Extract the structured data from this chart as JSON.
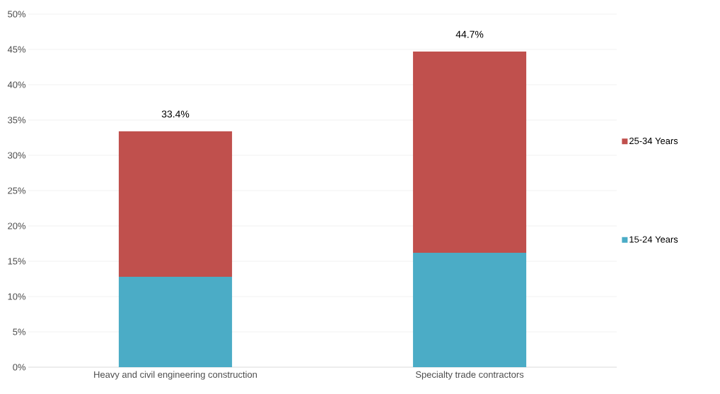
{
  "chart_data": {
    "type": "bar",
    "stacked": true,
    "categories": [
      "Heavy and civil engineering construction",
      "Specialty trade contractors"
    ],
    "series": [
      {
        "name": "15-24 Years",
        "color": "#4bacc6",
        "values": [
          12.8,
          16.2
        ]
      },
      {
        "name": "25-34 Years",
        "color": "#c0504d",
        "values": [
          20.6,
          28.5
        ]
      }
    ],
    "totals": [
      "33.4%",
      "44.7%"
    ],
    "ylim": [
      0,
      50
    ],
    "yticks": [
      {
        "value": 0,
        "label": "0%"
      },
      {
        "value": 5,
        "label": "5%"
      },
      {
        "value": 10,
        "label": "10%"
      },
      {
        "value": 15,
        "label": "15%"
      },
      {
        "value": 20,
        "label": "20%"
      },
      {
        "value": 25,
        "label": "25%"
      },
      {
        "value": 30,
        "label": "30%"
      },
      {
        "value": 35,
        "label": "35%"
      },
      {
        "value": 40,
        "label": "40%"
      },
      {
        "value": 45,
        "label": "45%"
      },
      {
        "value": 50,
        "label": "50%"
      }
    ],
    "grid": "y",
    "legend": "right"
  }
}
